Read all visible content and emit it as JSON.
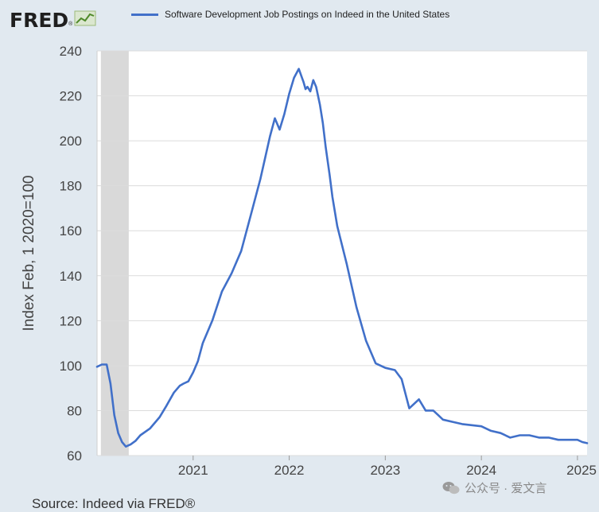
{
  "header": {
    "logo_text": "FRED",
    "logo_reg": "®"
  },
  "legend": {
    "label": "Software Development Job Postings on Indeed in the United States",
    "color": "#4170c9"
  },
  "source": "Source: Indeed via FRED®",
  "watermark": "公众号 · 爱文言",
  "chart_data": {
    "type": "line",
    "title": "Software Development Job Postings on Indeed in the United States",
    "xlabel": "",
    "ylabel": "Index Feb, 1 2020=100",
    "ylim": [
      60,
      240
    ],
    "yticks": [
      60,
      80,
      100,
      120,
      140,
      160,
      180,
      200,
      220,
      240
    ],
    "xlim": [
      2020.0,
      2025.1
    ],
    "xticks": [
      2021,
      2022,
      2023,
      2024,
      2025
    ],
    "xtick_labels": [
      "2021",
      "2022",
      "2023",
      "2024",
      "2025"
    ],
    "recession_shading": [
      2020.04,
      2020.33
    ],
    "grid": true,
    "series": [
      {
        "name": "Software Development Job Postings on Indeed in the United States",
        "color": "#4170c9",
        "x": [
          2020.0,
          2020.05,
          2020.1,
          2020.14,
          2020.18,
          2020.22,
          2020.26,
          2020.3,
          2020.35,
          2020.4,
          2020.45,
          2020.55,
          2020.65,
          2020.72,
          2020.8,
          2020.86,
          2020.9,
          2020.95,
          2021.0,
          2021.05,
          2021.1,
          2021.2,
          2021.3,
          2021.4,
          2021.5,
          2021.6,
          2021.7,
          2021.8,
          2021.85,
          2021.9,
          2021.95,
          2022.0,
          2022.05,
          2022.1,
          2022.15,
          2022.17,
          2022.19,
          2022.22,
          2022.25,
          2022.28,
          2022.32,
          2022.35,
          2022.38,
          2022.42,
          2022.45,
          2022.5,
          2022.6,
          2022.7,
          2022.8,
          2022.9,
          2023.0,
          2023.1,
          2023.17,
          2023.25,
          2023.35,
          2023.42,
          2023.5,
          2023.55,
          2023.6,
          2023.7,
          2023.8,
          2023.9,
          2024.0,
          2024.1,
          2024.2,
          2024.3,
          2024.4,
          2024.5,
          2024.6,
          2024.7,
          2024.8,
          2024.9,
          2025.0,
          2025.05,
          2025.1
        ],
        "values": [
          99.5,
          100.5,
          100.5,
          92,
          78,
          70,
          66,
          64,
          65,
          66.5,
          69,
          72,
          77,
          82,
          88,
          91,
          92,
          93,
          97,
          102,
          110,
          120,
          133,
          141,
          151,
          167,
          183,
          202,
          210,
          205,
          212,
          221,
          228,
          232,
          226,
          223,
          224,
          222,
          227,
          224,
          216,
          208,
          197,
          185,
          175,
          162,
          145,
          126,
          111,
          101,
          99,
          98,
          94,
          81,
          85,
          80,
          80,
          78,
          76,
          75,
          74,
          73.5,
          73,
          71,
          70,
          68,
          69,
          69,
          68,
          68,
          67,
          67,
          67,
          66,
          65.5
        ]
      }
    ]
  }
}
